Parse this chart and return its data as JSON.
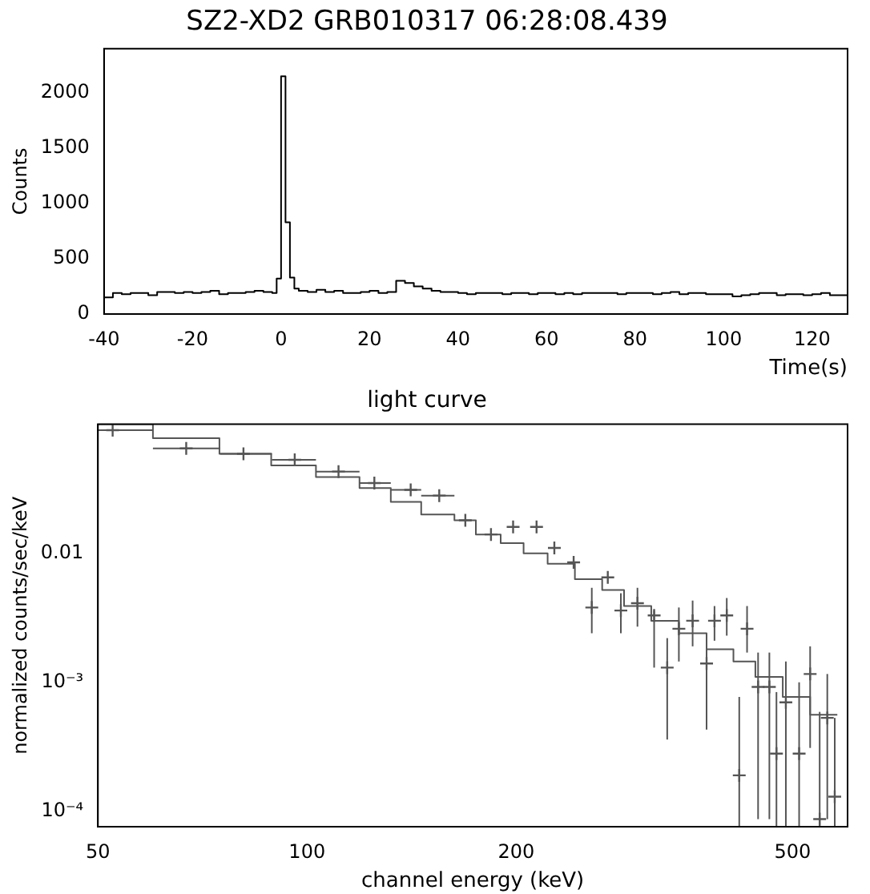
{
  "chart_data": [
    {
      "type": "step",
      "title": "SZ2-XD2 GRB010317 06:28:08.439",
      "xlabel": "Time(s)",
      "ylabel": "Counts",
      "xlim": [
        -40,
        128
      ],
      "xticks": [
        -40,
        -20,
        0,
        20,
        40,
        60,
        80,
        100,
        120
      ],
      "ylim": [
        0,
        2400
      ],
      "yticks": [
        0,
        500,
        1000,
        1500,
        2000
      ],
      "grid": false,
      "legend": false,
      "series": [
        {
          "color": "#000000",
          "x": [
            -40,
            -38,
            -36,
            -34,
            -32,
            -30,
            -28,
            -26,
            -24,
            -22,
            -20,
            -18,
            -16,
            -14,
            -12,
            -10,
            -8,
            -6,
            -4,
            -2,
            -1,
            0,
            1,
            2,
            3,
            4,
            6,
            8,
            10,
            12,
            14,
            16,
            18,
            20,
            22,
            24,
            26,
            28,
            30,
            32,
            34,
            36,
            38,
            40,
            42,
            44,
            46,
            48,
            50,
            52,
            54,
            56,
            58,
            60,
            62,
            64,
            66,
            68,
            70,
            72,
            74,
            76,
            78,
            80,
            82,
            84,
            86,
            88,
            90,
            92,
            94,
            96,
            98,
            100,
            102,
            104,
            106,
            108,
            110,
            112,
            114,
            116,
            118,
            120,
            122,
            124,
            128
          ],
          "values": [
            150,
            190,
            180,
            190,
            190,
            170,
            200,
            200,
            190,
            200,
            190,
            200,
            210,
            180,
            190,
            190,
            200,
            210,
            200,
            190,
            320,
            2150,
            830,
            330,
            230,
            210,
            200,
            220,
            200,
            210,
            190,
            190,
            200,
            210,
            190,
            200,
            300,
            280,
            250,
            230,
            210,
            200,
            200,
            190,
            180,
            190,
            190,
            190,
            180,
            190,
            190,
            180,
            190,
            190,
            180,
            190,
            180,
            190,
            190,
            190,
            190,
            180,
            190,
            190,
            190,
            180,
            190,
            200,
            180,
            190,
            190,
            180,
            180,
            180,
            160,
            170,
            180,
            190,
            190,
            170,
            180,
            180,
            170,
            180,
            190,
            170,
            170
          ]
        }
      ]
    },
    {
      "type": "scatter",
      "title": "light curve",
      "xlabel": "channel energy (keV)",
      "ylabel": "normalized counts/sec/keV",
      "log": "xy",
      "xlim": [
        50,
        600
      ],
      "xticks": [
        50,
        100,
        200,
        500
      ],
      "ylim": [
        7.6e-05,
        0.1
      ],
      "yticks": [
        {
          "value": 0.01,
          "label": "0.01"
        },
        {
          "value": 0.001,
          "label": "10⁻³"
        },
        {
          "value": 0.0001,
          "label": "10⁻⁴"
        }
      ],
      "grid": false,
      "legend": false,
      "series": [
        {
          "color": "#555555",
          "marker": "cross",
          "x": [
            52.5,
            67,
            81,
            96,
            111,
            125,
            141,
            155,
            169,
            184,
            198,
            214,
            227,
            242,
            257,
            271,
            283,
            299,
            316,
            330,
            343,
            359,
            376,
            386,
            402,
            419,
            430,
            446,
            463,
            474,
            489,
            511,
            530,
            547,
            561,
            575
          ],
          "values": [
            0.09,
            0.065,
            0.059,
            0.053,
            0.043,
            0.035,
            0.031,
            0.028,
            0.018,
            0.014,
            0.016,
            0.016,
            0.011,
            0.0085,
            0.0038,
            0.0065,
            0.0036,
            0.0041,
            0.0033,
            0.0013,
            0.0026,
            0.003,
            0.0014,
            0.003,
            0.0033,
            0.00019,
            0.0026,
            0.00092,
            0.00092,
            0.00028,
            0.0007,
            0.00028,
            0.00116,
            8.7e-05,
            0.00053,
            0.00013
          ],
          "errors": [
            null,
            null,
            null,
            null,
            null,
            null,
            null,
            null,
            null,
            null,
            null,
            null,
            null,
            null,
            [
              0.0024,
              0.0054
            ],
            null,
            [
              0.0024,
              0.0049
            ],
            [
              0.0027,
              0.0054
            ],
            [
              0.0013,
              0.0036
            ],
            [
              0.00036,
              0.0022
            ],
            [
              0.00145,
              0.0038
            ],
            [
              0.0019,
              0.0043
            ],
            [
              0.00043,
              0.0021
            ],
            [
              0.0021,
              0.0039
            ],
            [
              0.0023,
              0.0045
            ],
            [
              7.6e-05,
              0.00077
            ],
            [
              0.0017,
              0.0039
            ],
            [
              8.7e-05,
              0.0017
            ],
            [
              8.7e-05,
              0.0017
            ],
            [
              7.6e-05,
              0.00084
            ],
            [
              7.6e-05,
              0.00145
            ],
            [
              7.6e-05,
              0.001
            ],
            [
              0.00031,
              0.0019
            ],
            [
              7.6e-05,
              0.00059
            ],
            [
              8.7e-05,
              0.00116
            ],
            [
              7.6e-05,
              0.00053
            ]
          ],
          "xerrors": [
            [
              50,
              60
            ],
            [
              60,
              75
            ],
            [
              75,
              89
            ],
            [
              89,
              103
            ],
            [
              103,
              119
            ],
            [
              119,
              132
            ],
            [
              132,
              146
            ],
            [
              146,
              163
            ],
            null,
            null,
            null,
            null,
            null,
            null,
            null,
            null,
            null,
            null,
            null,
            null,
            null,
            null,
            null,
            null,
            null,
            null,
            null,
            null,
            null,
            null,
            null,
            null,
            null,
            null,
            null,
            null
          ]
        },
        {
          "type": "step",
          "color": "#555555",
          "x": [
            50,
            60,
            74.8,
            88.8,
            103,
            119,
            132,
            146,
            163,
            175,
            190,
            205,
            222,
            243,
            266,
            286,
            313,
            343,
            376,
            411,
            442,
            484,
            530,
            580
          ],
          "values": [
            0.1,
            0.078,
            0.059,
            0.048,
            0.039,
            0.032,
            0.025,
            0.02,
            0.018,
            0.014,
            0.012,
            0.01,
            0.0083,
            0.0063,
            0.0052,
            0.0039,
            0.003,
            0.0024,
            0.0018,
            0.00145,
            0.0011,
            0.00077,
            0.00056,
            0.00056
          ]
        }
      ]
    }
  ]
}
